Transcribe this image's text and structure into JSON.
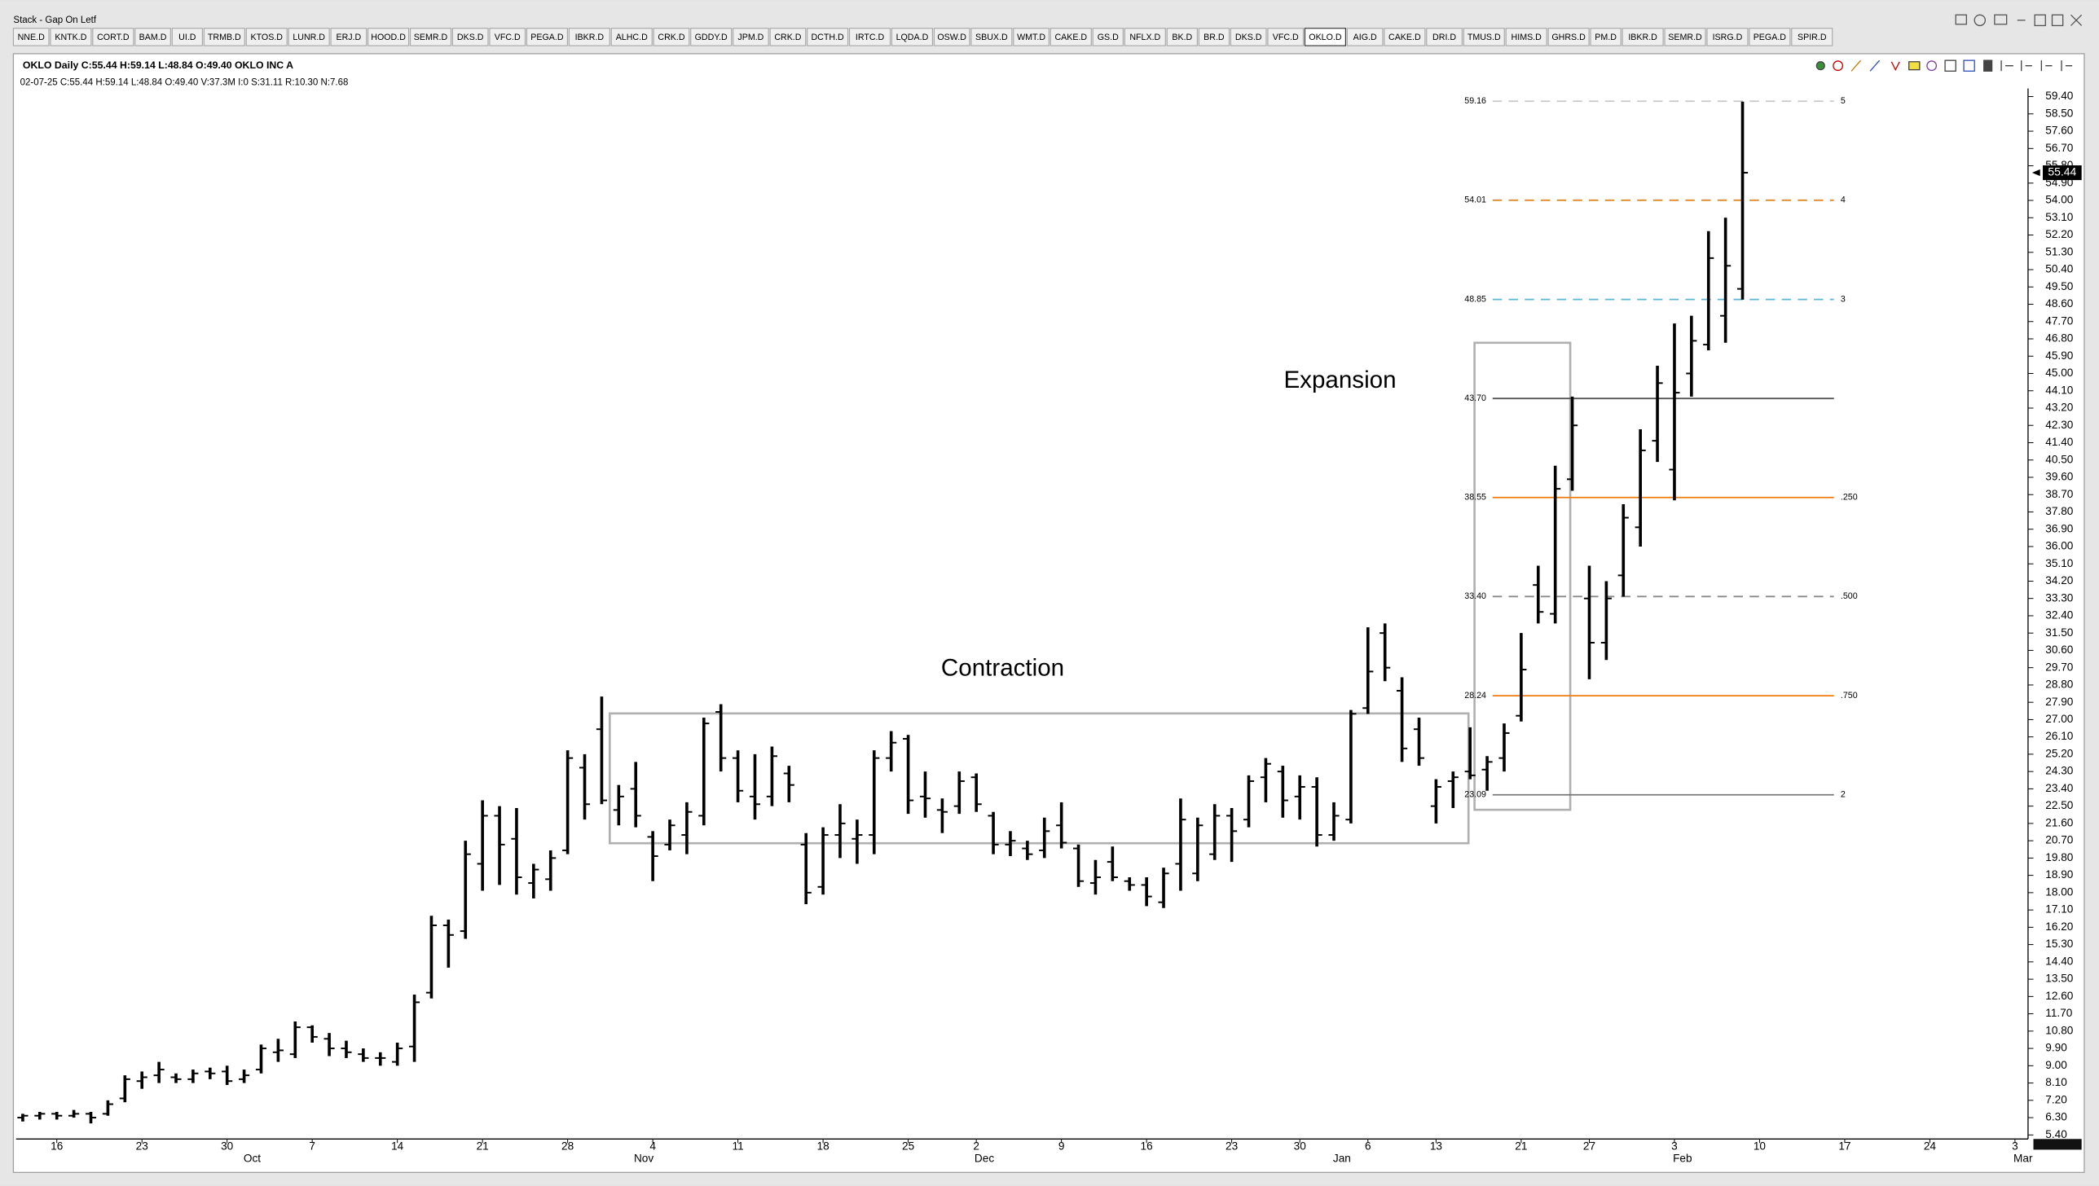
{
  "window_title": "Stack - Gap On Letf",
  "toolbar": {
    "tabs": [
      "NNE.D",
      "KNTK.D",
      "CORT.D",
      "BAM.D",
      "UI.D",
      "TRMB.D",
      "KTOS.D",
      "LUNR.D",
      "ERJ.D",
      "HOOD.D",
      "SEMR.D",
      "DKS.D",
      "VFC.D",
      "PEGA.D",
      "IBKR.D",
      "ALHC.D",
      "CRK.D",
      "GDDY.D",
      "JPM.D",
      "CRK.D",
      "DCTH.D",
      "IRTC.D",
      "LQDA.D",
      "OSW.D",
      "SBUX.D",
      "WMT.D",
      "CAKE.D",
      "GS.D",
      "NFLX.D",
      "BK.D",
      "BR.D",
      "DKS.D",
      "VFC.D",
      "OKLO.D",
      "AIG.D",
      "CAKE.D",
      "DRI.D",
      "TMUS.D",
      "HIMS.D",
      "GHRS.D",
      "PM.D",
      "IBKR.D",
      "SEMR.D",
      "ISRG.D",
      "PEGA.D",
      "SPIR.D"
    ],
    "active": 33
  },
  "chart_header": "OKLO Daily C:55.44 H:59.14 L:48.84 O:49.40 OKLO INC A",
  "chart_status": "02-07-25 C:55.44 H:59.14 L:48.84 O:49.40 V:37.3M I:0 S:31.11 R:10.30 N:7.68",
  "chart_data": {
    "type": "ohlc",
    "color": "#000000",
    "categories": [
      null,
      null,
      "16",
      null,
      null,
      null,
      null,
      "23",
      null,
      null,
      null,
      null,
      "30",
      null,
      null,
      null,
      null,
      "7",
      null,
      null,
      null,
      null,
      "14",
      null,
      null,
      null,
      null,
      "21",
      null,
      null,
      null,
      null,
      "28",
      null,
      null,
      null,
      null,
      "4",
      null,
      null,
      null,
      null,
      "11",
      null,
      null,
      null,
      null,
      "18",
      null,
      null,
      null,
      null,
      "25",
      null,
      null,
      null,
      "2",
      null,
      null,
      null,
      null,
      "9",
      null,
      null,
      null,
      null,
      "16",
      null,
      null,
      null,
      null,
      "23",
      null,
      null,
      null,
      "30",
      null,
      null,
      null,
      "6",
      null,
      null,
      null,
      "13",
      null,
      null,
      null,
      null,
      "21",
      null,
      null,
      null,
      "27",
      null,
      null,
      null,
      null,
      "3",
      null,
      null,
      null,
      null,
      "10",
      null,
      null,
      null,
      null,
      "17",
      null,
      null,
      null,
      null,
      "24",
      null,
      null,
      null,
      null,
      "3"
    ],
    "months": [
      null,
      null,
      null,
      null,
      null,
      null,
      null,
      null,
      null,
      null,
      null,
      null,
      null,
      "Oct",
      null,
      null,
      null,
      null,
      null,
      null,
      null,
      null,
      null,
      null,
      null,
      null,
      null,
      null,
      null,
      null,
      null,
      null,
      null,
      null,
      null,
      null,
      "Nov",
      null,
      null,
      null,
      null,
      null,
      null,
      null,
      null,
      null,
      null,
      null,
      null,
      null,
      null,
      null,
      null,
      null,
      null,
      null,
      "Dec",
      null,
      null,
      null,
      null,
      null,
      null,
      null,
      null,
      null,
      null,
      null,
      null,
      null,
      null,
      null,
      null,
      null,
      null,
      null,
      null,
      "Jan",
      null,
      null,
      null,
      null,
      null,
      null,
      null,
      null,
      null,
      null,
      null,
      null,
      null,
      null,
      null,
      null,
      null,
      null,
      null,
      "Feb",
      null,
      null,
      null,
      null,
      null,
      null,
      null,
      null,
      null,
      null,
      null,
      null,
      null,
      null,
      null,
      null,
      null,
      null,
      null,
      "Mar"
    ],
    "open": [
      6.3,
      6.4,
      6.5,
      6.4,
      6.5,
      6.5,
      7.3,
      8.2,
      8.5,
      8.4,
      8.3,
      8.7,
      8.7,
      8.3,
      8.8,
      9.7,
      9.6,
      11.0,
      10.4,
      9.9,
      9.6,
      9.4,
      9.2,
      10.0,
      12.8,
      16.3,
      16.0,
      19.5,
      22.0,
      20.8,
      18.5,
      18.7,
      20.2,
      24.5,
      26.5,
      22.3,
      23.4,
      20.9,
      20.5,
      21.0,
      22.0,
      27.4,
      25.0,
      23.0,
      23.0,
      24.2,
      20.5,
      18.3,
      21.0,
      20.8,
      21.0,
      25.0,
      26.0,
      23.0,
      22.3,
      22.5,
      24.0,
      22.0,
      20.5,
      20.3,
      20.2,
      21.5,
      20.3,
      18.5,
      19.6,
      18.6,
      18.4,
      17.5,
      19.5,
      19.0,
      20.0,
      22.0,
      21.8,
      24.0,
      24.3,
      23.0,
      23.5,
      21.0,
      21.8,
      27.6,
      31.5,
      28.5,
      26.5,
      22.5,
      23.8,
      24.3,
      24.4,
      25.0,
      27.2,
      34.0,
      32.5,
      39.5,
      33.3,
      31.0,
      34.5,
      37.0,
      41.5,
      40.0,
      45.0,
      46.5,
      48.0,
      49.4,
      null,
      null,
      null,
      null,
      null,
      null,
      null,
      null,
      null,
      null,
      null,
      null,
      null,
      null,
      null,
      null
    ],
    "high": [
      6.5,
      6.6,
      6.6,
      6.7,
      6.6,
      7.2,
      8.5,
      8.7,
      9.2,
      8.6,
      8.8,
      8.9,
      9.0,
      8.8,
      10.1,
      10.4,
      11.3,
      11.1,
      10.7,
      10.3,
      9.9,
      9.7,
      10.2,
      12.7,
      16.8,
      16.6,
      20.7,
      22.8,
      22.5,
      22.4,
      19.5,
      20.2,
      25.4,
      25.2,
      28.2,
      23.6,
      24.8,
      21.2,
      21.8,
      22.7,
      27.1,
      27.8,
      25.4,
      25.2,
      25.6,
      24.6,
      21.1,
      21.4,
      22.6,
      21.8,
      25.4,
      26.4,
      26.2,
      24.3,
      22.9,
      24.3,
      24.2,
      22.2,
      21.2,
      20.7,
      21.9,
      22.7,
      20.5,
      19.7,
      20.4,
      18.8,
      18.8,
      19.3,
      22.9,
      21.9,
      22.6,
      22.4,
      24.1,
      25.0,
      24.6,
      24.1,
      24.0,
      22.7,
      27.5,
      31.8,
      32.0,
      29.2,
      27.1,
      23.9,
      24.3,
      26.6,
      25.1,
      26.8,
      31.5,
      35.0,
      40.2,
      43.8,
      35.0,
      34.2,
      38.2,
      42.1,
      45.4,
      47.6,
      48.0,
      52.4,
      53.1,
      59.14,
      null,
      null,
      null,
      null,
      null,
      null,
      null,
      null,
      null,
      null,
      null,
      null,
      null,
      null,
      null,
      null
    ],
    "low": [
      6.1,
      6.2,
      6.2,
      6.3,
      6.0,
      6.4,
      7.1,
      7.8,
      8.1,
      8.1,
      8.1,
      8.3,
      8.0,
      8.1,
      8.6,
      9.2,
      9.4,
      10.2,
      9.5,
      9.4,
      9.2,
      9.0,
      9.0,
      9.2,
      12.5,
      14.1,
      15.6,
      18.1,
      18.4,
      17.9,
      17.7,
      18.1,
      20.0,
      21.8,
      22.6,
      21.5,
      21.4,
      18.6,
      20.2,
      20.0,
      21.5,
      24.3,
      22.7,
      21.8,
      22.5,
      22.7,
      17.4,
      17.9,
      19.8,
      19.5,
      20.0,
      24.3,
      22.1,
      21.9,
      21.1,
      22.1,
      22.2,
      20.0,
      19.9,
      19.7,
      19.8,
      20.3,
      18.3,
      17.9,
      18.6,
      18.1,
      17.3,
      17.2,
      18.1,
      18.6,
      19.7,
      19.6,
      21.4,
      22.7,
      21.9,
      21.8,
      20.4,
      20.7,
      21.6,
      27.3,
      29.0,
      24.8,
      24.6,
      21.6,
      22.4,
      23.9,
      23.3,
      24.3,
      26.9,
      32.0,
      32.0,
      38.9,
      29.1,
      30.1,
      33.4,
      36.0,
      40.4,
      38.4,
      43.8,
      46.2,
      46.6,
      48.84,
      null,
      null,
      null,
      null,
      null,
      null,
      null,
      null,
      null,
      null,
      null,
      null,
      null,
      null,
      null,
      null
    ],
    "close": [
      6.4,
      6.5,
      6.4,
      6.5,
      6.3,
      7.0,
      8.3,
      8.4,
      8.8,
      8.3,
      8.6,
      8.6,
      8.2,
      8.5,
      9.9,
      9.8,
      11.0,
      10.5,
      9.9,
      9.7,
      9.4,
      9.4,
      9.9,
      12.3,
      16.3,
      15.8,
      20.0,
      22.0,
      20.5,
      18.8,
      19.2,
      19.8,
      25.0,
      22.6,
      22.8,
      23.0,
      22.0,
      19.9,
      21.5,
      22.2,
      26.8,
      25.0,
      23.3,
      22.6,
      25.1,
      23.6,
      18.0,
      21.0,
      21.6,
      21.0,
      25.0,
      25.8,
      22.8,
      22.9,
      22.2,
      23.8,
      22.6,
      20.5,
      20.7,
      20.0,
      21.2,
      20.6,
      18.6,
      18.8,
      18.8,
      18.4,
      17.8,
      19.0,
      21.8,
      21.5,
      22.0,
      21.2,
      23.8,
      24.7,
      22.8,
      23.5,
      21.0,
      22.0,
      27.3,
      29.5,
      29.7,
      25.5,
      25.0,
      23.5,
      24.0,
      24.1,
      24.8,
      26.3,
      29.6,
      32.6,
      39.0,
      42.3,
      31.0,
      33.3,
      37.5,
      41.0,
      44.5,
      44.0,
      46.7,
      51.0,
      50.6,
      55.44,
      null,
      null,
      null,
      null,
      null,
      null,
      null,
      null,
      null,
      null,
      null,
      null,
      null,
      null,
      null,
      null
    ],
    "ylim": [
      5.12,
      59.82
    ],
    "yticks": [
      {
        "value": 5.4,
        "label": "5.40"
      },
      {
        "value": 6.3,
        "label": "6.30"
      },
      {
        "value": 7.2,
        "label": "7.20"
      },
      {
        "value": 8.1,
        "label": "8.10"
      },
      {
        "value": 9.0,
        "label": "9.00"
      },
      {
        "value": 9.9,
        "label": "9.90"
      },
      {
        "value": 10.8,
        "label": "10.80"
      },
      {
        "value": 11.7,
        "label": "11.70"
      },
      {
        "value": 12.6,
        "label": "12.60"
      },
      {
        "value": 13.5,
        "label": "13.50"
      },
      {
        "value": 14.4,
        "label": "14.40"
      },
      {
        "value": 15.3,
        "label": "15.30"
      },
      {
        "value": 16.2,
        "label": "16.20"
      },
      {
        "value": 17.1,
        "label": "17.10"
      },
      {
        "value": 18.0,
        "label": "18.00"
      },
      {
        "value": 18.9,
        "label": "18.90"
      },
      {
        "value": 19.8,
        "label": "19.80"
      },
      {
        "value": 20.7,
        "label": "20.70"
      },
      {
        "value": 21.6,
        "label": "21.60"
      },
      {
        "value": 22.5,
        "label": "22.50"
      },
      {
        "value": 23.4,
        "label": "23.40"
      },
      {
        "value": 24.3,
        "label": "24.30"
      },
      {
        "value": 25.2,
        "label": "25.20"
      },
      {
        "value": 26.1,
        "label": "26.10"
      },
      {
        "value": 27.0,
        "label": "27.00"
      },
      {
        "value": 27.9,
        "label": "27.90"
      },
      {
        "value": 28.8,
        "label": "28.80"
      },
      {
        "value": 29.7,
        "label": "29.70"
      },
      {
        "value": 30.6,
        "label": "30.60"
      },
      {
        "value": 31.5,
        "label": "31.50"
      },
      {
        "value": 32.4,
        "label": "32.40"
      },
      {
        "value": 33.3,
        "label": "33.30"
      },
      {
        "value": 34.2,
        "label": "34.20"
      },
      {
        "value": 35.1,
        "label": "35.10"
      },
      {
        "value": 36.0,
        "label": "36.00"
      },
      {
        "value": 36.9,
        "label": "36.90"
      },
      {
        "value": 37.8,
        "label": "37.80"
      },
      {
        "value": 38.7,
        "label": "38.70"
      },
      {
        "value": 39.6,
        "label": "39.60"
      },
      {
        "value": 40.5,
        "label": "40.50"
      },
      {
        "value": 41.4,
        "label": "41.40"
      },
      {
        "value": 42.3,
        "label": "42.30"
      },
      {
        "value": 43.2,
        "label": "43.20"
      },
      {
        "value": 44.1,
        "label": "44.10"
      },
      {
        "value": 45.0,
        "label": "45.00"
      },
      {
        "value": 45.9,
        "label": "45.90"
      },
      {
        "value": 46.8,
        "label": "46.80"
      },
      {
        "value": 47.7,
        "label": "47.70"
      },
      {
        "value": 48.6,
        "label": "48.60"
      },
      {
        "value": 49.5,
        "label": "49.50"
      },
      {
        "value": 50.4,
        "label": "50.40"
      },
      {
        "value": 51.3,
        "label": "51.30"
      },
      {
        "value": 52.2,
        "label": "52.20"
      },
      {
        "value": 53.1,
        "label": "53.10"
      },
      {
        "value": 54.0,
        "label": "54.00"
      },
      {
        "value": 54.9,
        "label": "54.90"
      },
      {
        "value": 55.8,
        "label": "55.80"
      },
      {
        "value": 56.7,
        "label": "56.70"
      },
      {
        "value": 57.6,
        "label": "57.60"
      },
      {
        "value": 58.5,
        "label": "58.50"
      },
      {
        "value": 59.4,
        "label": "59.40"
      }
    ],
    "levels": [
      {
        "value": 59.16,
        "label": "59.16",
        "tag": "5",
        "color": "#c8c8c8",
        "dashed": true
      },
      {
        "value": 54.01,
        "label": "54.01",
        "tag": "4",
        "color": "#e08a2a",
        "dashed": true
      },
      {
        "value": 48.85,
        "label": "48.85",
        "tag": "3",
        "color": "#5bb8d0",
        "dashed": true
      },
      {
        "value": 43.7,
        "label": "43.70",
        "color": "#555555",
        "dashed": false
      },
      {
        "value": 38.55,
        "label": "38.55",
        "tag": ".250",
        "color": "#f07c10",
        "dashed": false
      },
      {
        "value": 33.4,
        "label": "33.40",
        "tag": ".500",
        "color": "#8a8a8a",
        "dashed": true
      },
      {
        "value": 28.24,
        "label": "28.24",
        "tag": ".750",
        "color": "#f07c10",
        "dashed": false
      },
      {
        "value": 23.09,
        "label": "23.09",
        "tag": "2",
        "color": "#777777",
        "dashed": false
      }
    ],
    "annotations": [
      "Contraction",
      "Expansion"
    ]
  }
}
